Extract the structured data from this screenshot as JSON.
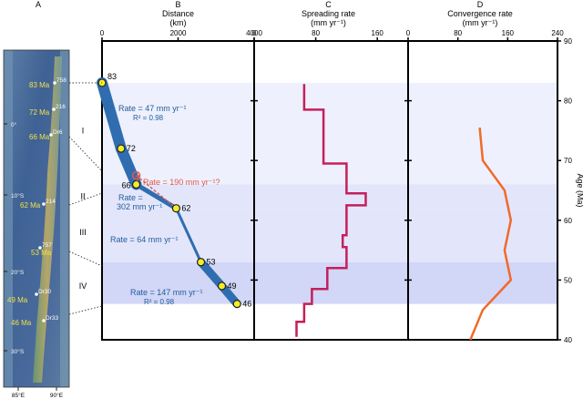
{
  "colors": {
    "band_light": "#eef0fd",
    "band_mid": "#e3e6fb",
    "band_dark": "#d2d6f7",
    "segment": "#2f6db0",
    "rate_label": "#215d9c",
    "questioned": "#e05a4e",
    "spreading": "#c41f5a",
    "convergence": "#f06a2a",
    "map_yellow": "#f2e04a"
  },
  "panel_letters": {
    "a": "A",
    "b": "B",
    "c": "C",
    "d": "D"
  },
  "map": {
    "lat_labels": [
      "0°",
      "10°S",
      "20°S",
      "30°S"
    ],
    "lon_labels": [
      "85°E",
      "90°E"
    ],
    "age_labels": [
      "83 Ma",
      "72 Ma",
      "66 Ma",
      "62 Ma",
      "53 Ma",
      "49 Ma",
      "46 Ma"
    ],
    "site_labels": [
      "758",
      "216",
      "Dr6",
      "214",
      "757",
      "Dr30",
      "Dr33"
    ]
  },
  "segments": [
    "I",
    "II",
    "III",
    "IV"
  ],
  "age_axis_label": "Age (Ma)",
  "annotations": {
    "rate_i": "Rate = 47 mm yr⁻¹",
    "r2_i": "R² = 0.98",
    "rate_q": "Rate = 190 mm yr⁻¹?",
    "q_mark": "?",
    "rate_ii_a": "Rate =",
    "rate_ii_b": "302 mm yr⁻¹",
    "rate_iii": "Rate = 64 mm yr⁻¹",
    "rate_iv": "Rate = 147 mm yr⁻¹",
    "r2_iv": "R² = 0.98"
  },
  "chart_data": [
    {
      "panel": "B",
      "type": "line",
      "title": "Distance",
      "subtitle": "(km)",
      "xlabel": "",
      "ylabel": "Age (Ma)",
      "xlim": [
        0,
        4000
      ],
      "ylim": [
        40,
        90
      ],
      "x_ticks": [
        0,
        2000,
        4000
      ],
      "y_ticks": [
        40,
        50,
        60,
        70,
        80,
        90
      ],
      "grid": false,
      "series": [
        {
          "points": [
            {
              "x": 0,
              "y": 83,
              "label": "83"
            },
            {
              "x": 500,
              "y": 72,
              "label": "72"
            },
            {
              "x": 900,
              "y": 66,
              "label": "66"
            },
            {
              "x": 1950,
              "y": 62,
              "label": "62"
            },
            {
              "x": 2600,
              "y": 53,
              "label": "53"
            },
            {
              "x": 3150,
              "y": 49,
              "label": "49"
            },
            {
              "x": 3550,
              "y": 46,
              "label": "46"
            }
          ]
        }
      ],
      "questioned_point": {
        "x": 900,
        "y": 67.5
      }
    },
    {
      "panel": "C",
      "type": "line",
      "title": "Spreading rate",
      "subtitle": "(mm yr⁻¹)",
      "xlim": [
        0,
        200
      ],
      "x_ticks": [
        0,
        80,
        160
      ],
      "ylim": [
        40,
        90
      ],
      "grid": false,
      "series": [
        {
          "points": [
            [
              65,
              82.8
            ],
            [
              65,
              78.5
            ],
            [
              90,
              78.5
            ],
            [
              90,
              69.5
            ],
            [
              120,
              69.5
            ],
            [
              120,
              64.5
            ],
            [
              145,
              64.5
            ],
            [
              145,
              62.5
            ],
            [
              120,
              62.5
            ],
            [
              120,
              57.5
            ],
            [
              115,
              57.5
            ],
            [
              115,
              55.5
            ],
            [
              120,
              55.5
            ],
            [
              120,
              52
            ],
            [
              95,
              52
            ],
            [
              95,
              48.5
            ],
            [
              75,
              48.5
            ],
            [
              75,
              46
            ],
            [
              65,
              46
            ],
            [
              65,
              43
            ],
            [
              55,
              43
            ],
            [
              55,
              40.5
            ]
          ]
        }
      ]
    },
    {
      "panel": "D",
      "type": "line",
      "title": "Convergence rate",
      "subtitle": "(mm yr⁻¹)",
      "xlim": [
        0,
        240
      ],
      "x_ticks": [
        0,
        80,
        160,
        240
      ],
      "ylim": [
        40,
        90
      ],
      "y_ticks": [
        40,
        50,
        60,
        70,
        80,
        90
      ],
      "ylabel": "Age (Ma)",
      "grid": false,
      "series": [
        {
          "points": [
            [
              115,
              75.5
            ],
            [
              120,
              70
            ],
            [
              155,
              65
            ],
            [
              165,
              60
            ],
            [
              155,
              55
            ],
            [
              165,
              50
            ],
            [
              120,
              45
            ],
            [
              100,
              40
            ]
          ]
        }
      ]
    }
  ]
}
